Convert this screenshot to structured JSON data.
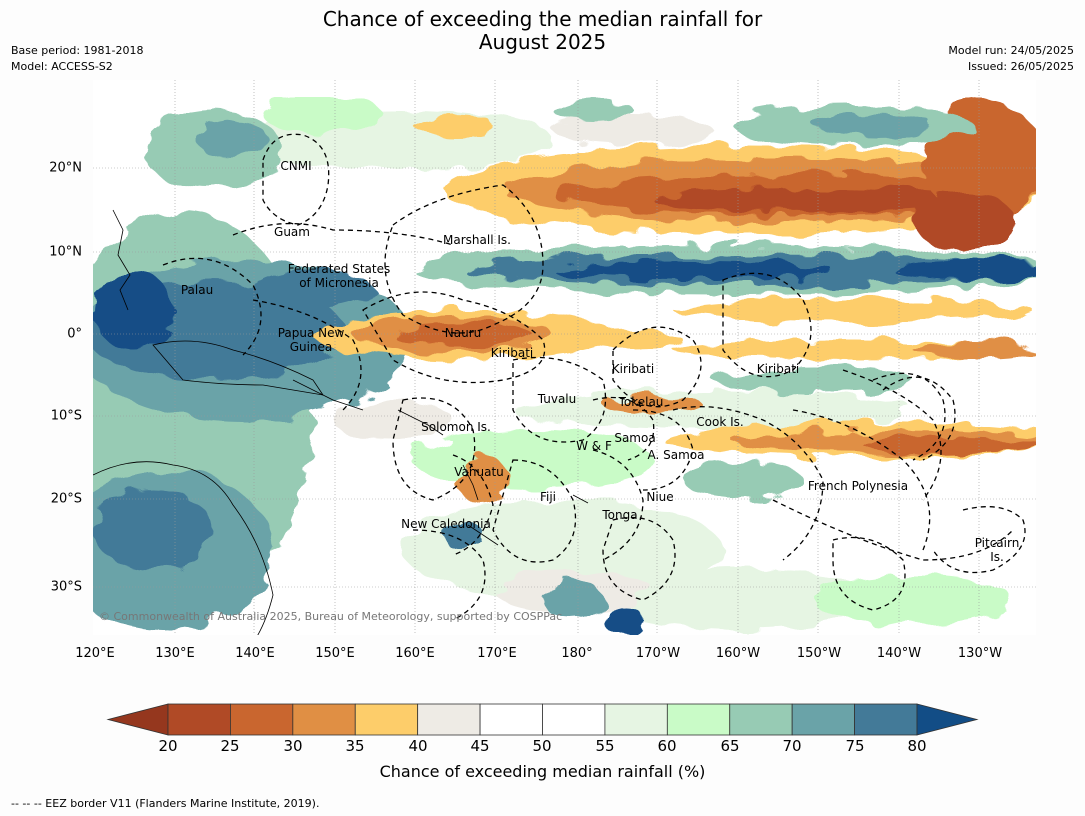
{
  "title": {
    "line1": "Chance of exceeding the median rainfall for",
    "line2": "August 2025"
  },
  "meta": {
    "base_period": "Base period: 1981-2018",
    "model": "Model: ACCESS-S2",
    "model_run": "Model run: 24/05/2025",
    "issued": "Issued: 26/05/2025"
  },
  "axes": {
    "lon_labels": [
      "120°E",
      "130°E",
      "140°E",
      "150°E",
      "160°E",
      "170°E",
      "180°",
      "170°W",
      "160°W",
      "150°W",
      "140°W",
      "130°W"
    ],
    "lat_labels": [
      "20°N",
      "10°N",
      "0°",
      "10°S",
      "20°S",
      "30°S"
    ]
  },
  "places": [
    {
      "name": "CNMI",
      "line2": ""
    },
    {
      "name": "Guam",
      "line2": ""
    },
    {
      "name": "Marshall Is.",
      "line2": ""
    },
    {
      "name": "Federated States",
      "line2": "of Micronesia"
    },
    {
      "name": "Palau",
      "line2": ""
    },
    {
      "name": "Papua New",
      "line2": "Guinea"
    },
    {
      "name": "Nauru",
      "line2": ""
    },
    {
      "name": "Kiribati",
      "line2": ""
    },
    {
      "name": "Kiribati",
      "line2": ""
    },
    {
      "name": "Kiribati",
      "line2": ""
    },
    {
      "name": "Tuvalu",
      "line2": ""
    },
    {
      "name": "Tokelau",
      "line2": ""
    },
    {
      "name": "Cook Is.",
      "line2": ""
    },
    {
      "name": "Solomon Is.",
      "line2": ""
    },
    {
      "name": "W & F",
      "line2": ""
    },
    {
      "name": "Samoa",
      "line2": ""
    },
    {
      "name": "A. Samoa",
      "line2": ""
    },
    {
      "name": "Vanuatu",
      "line2": ""
    },
    {
      "name": "Fiji",
      "line2": ""
    },
    {
      "name": "Niue",
      "line2": ""
    },
    {
      "name": "Tonga",
      "line2": ""
    },
    {
      "name": "French Polynesia",
      "line2": ""
    },
    {
      "name": "New Caledonia",
      "line2": ""
    },
    {
      "name": "Pitcairn",
      "line2": "Is."
    }
  ],
  "copyright": "© Commonwealth of Australia 2025, Bureau of Meteorology, supported by COSPPac",
  "colorbar": {
    "ticks": [
      "20",
      "25",
      "30",
      "35",
      "40",
      "45",
      "50",
      "55",
      "60",
      "65",
      "70",
      "75",
      "80"
    ],
    "colors": [
      "#b04a26",
      "#c9662f",
      "#e08f44",
      "#fdcd6a",
      "#eeebe5",
      "#ffffff",
      "#ffffff",
      "#e6f5e3",
      "#c9fbc7",
      "#97cbb4",
      "#6aa3a8",
      "#437a98"
    ],
    "under_color": "#95371e",
    "over_color": "#124d86",
    "label": "Chance of exceeding median rainfall (%)"
  },
  "legend_text": "--  --  -- EEZ border V11 (Flanders Marine Institute, 2019)."
}
